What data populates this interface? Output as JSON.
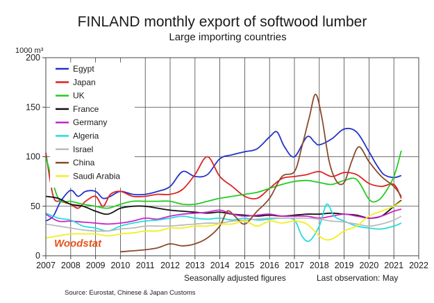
{
  "chart_data": {
    "type": "line",
    "title": "FINLAND  monthly export of softwood lumber",
    "subtitle": "Large importing countries",
    "ylabel": "1000 m³",
    "xlabel": "Seasonally adjusted figures",
    "note": "Last observation: May",
    "source": "Source: Eurostat, Chinese & Japan Customs",
    "watermark": "Woodstat",
    "xlim": [
      2007,
      2022
    ],
    "ylim": [
      0,
      200
    ],
    "x_ticks": [
      "2007",
      "2008",
      "2009",
      "2010",
      "2011",
      "2012",
      "2013",
      "2014",
      "2015",
      "2016",
      "2017",
      "2018",
      "2019",
      "2020",
      "2021",
      "2022"
    ],
    "y_ticks": [
      "0",
      "50",
      "100",
      "150",
      "200"
    ],
    "grid": "vertical-yearly-and-horizontal",
    "legend_position": "top-left",
    "series": [
      {
        "name": "Egypt",
        "color": "#2233cc",
        "x": [
          2007.0,
          2007.3,
          2007.6,
          2008.0,
          2008.3,
          2008.6,
          2009.0,
          2009.3,
          2009.6,
          2010.0,
          2010.5,
          2011.0,
          2011.5,
          2012.0,
          2012.5,
          2013.0,
          2013.5,
          2014.0,
          2014.5,
          2015.0,
          2015.5,
          2016.0,
          2016.3,
          2016.6,
          2017.0,
          2017.5,
          2017.8,
          2018.0,
          2018.5,
          2019.0,
          2019.5,
          2020.0,
          2020.3,
          2020.6,
          2021.0,
          2021.3
        ],
        "y": [
          35,
          40,
          55,
          66,
          60,
          65,
          65,
          58,
          60,
          65,
          62,
          62,
          65,
          70,
          85,
          80,
          82,
          98,
          102,
          105,
          108,
          120,
          125,
          110,
          100,
          120,
          115,
          112,
          118,
          128,
          125,
          105,
          92,
          82,
          79,
          81
        ]
      },
      {
        "name": "Japan",
        "color": "#dd2222",
        "x": [
          2007.0,
          2007.3,
          2007.6,
          2008.0,
          2008.3,
          2008.6,
          2009.0,
          2009.3,
          2009.6,
          2010.0,
          2010.5,
          2011.0,
          2011.5,
          2012.0,
          2012.5,
          2013.0,
          2013.5,
          2014.0,
          2014.5,
          2015.0,
          2015.5,
          2016.0,
          2016.5,
          2017.0,
          2017.5,
          2018.0,
          2018.5,
          2019.0,
          2019.5,
          2020.0,
          2020.5,
          2021.0,
          2021.3
        ],
        "y": [
          104,
          60,
          55,
          52,
          48,
          55,
          60,
          50,
          62,
          65,
          60,
          60,
          62,
          62,
          67,
          82,
          100,
          80,
          70,
          60,
          58,
          68,
          78,
          80,
          82,
          85,
          80,
          84,
          82,
          73,
          70,
          72,
          58
        ]
      },
      {
        "name": "UK",
        "color": "#22cc22",
        "x": [
          2007.0,
          2007.5,
          2008.0,
          2008.5,
          2009.0,
          2009.5,
          2010.0,
          2010.5,
          2011.0,
          2011.5,
          2012.0,
          2012.5,
          2013.0,
          2013.5,
          2014.0,
          2014.5,
          2015.0,
          2015.5,
          2016.0,
          2016.5,
          2017.0,
          2017.5,
          2018.0,
          2018.5,
          2019.0,
          2019.5,
          2020.0,
          2020.3,
          2020.6,
          2021.0,
          2021.3
        ],
        "y": [
          100,
          58,
          55,
          52,
          50,
          48,
          52,
          55,
          55,
          55,
          55,
          52,
          52,
          55,
          58,
          60,
          62,
          64,
          68,
          72,
          75,
          76,
          74,
          72,
          76,
          77,
          57,
          55,
          62,
          80,
          106
        ]
      },
      {
        "name": "France",
        "color": "#111111",
        "x": [
          2007.0,
          2007.5,
          2008.0,
          2008.5,
          2009.0,
          2009.5,
          2010.0,
          2010.5,
          2011.0,
          2011.5,
          2012.0,
          2012.5,
          2013.0,
          2013.5,
          2014.0,
          2014.5,
          2015.0,
          2015.5,
          2016.0,
          2016.5,
          2017.0,
          2017.5,
          2018.0,
          2018.5,
          2019.0,
          2019.5,
          2020.0,
          2020.5,
          2021.0,
          2021.3
        ],
        "y": [
          60,
          58,
          52,
          50,
          45,
          42,
          48,
          50,
          50,
          48,
          46,
          45,
          44,
          43,
          44,
          42,
          41,
          40,
          41,
          40,
          41,
          42,
          42,
          43,
          42,
          41,
          38,
          40,
          50,
          56
        ]
      },
      {
        "name": "Germany",
        "color": "#cc22cc",
        "x": [
          2007.0,
          2007.5,
          2008.0,
          2008.5,
          2009.0,
          2009.5,
          2010.0,
          2010.5,
          2011.0,
          2011.5,
          2012.0,
          2012.5,
          2013.0,
          2013.5,
          2014.0,
          2014.5,
          2015.0,
          2015.5,
          2016.0,
          2016.5,
          2017.0,
          2017.5,
          2018.0,
          2018.5,
          2019.0,
          2019.5,
          2020.0,
          2020.5,
          2021.0,
          2021.3
        ],
        "y": [
          42,
          35,
          35,
          34,
          33,
          32,
          33,
          35,
          38,
          37,
          40,
          42,
          43,
          44,
          46,
          42,
          40,
          41,
          42,
          40,
          40,
          40,
          38,
          40,
          42,
          40,
          38,
          40,
          45,
          47
        ]
      },
      {
        "name": "Algeria",
        "color": "#22dddd",
        "x": [
          2007.0,
          2007.5,
          2008.0,
          2008.5,
          2009.0,
          2009.5,
          2010.0,
          2010.5,
          2011.0,
          2011.5,
          2012.0,
          2012.5,
          2013.0,
          2013.5,
          2014.0,
          2014.5,
          2015.0,
          2015.5,
          2016.0,
          2016.5,
          2017.0,
          2017.3,
          2017.6,
          2018.0,
          2018.3,
          2018.6,
          2019.0,
          2019.5,
          2020.0,
          2020.5,
          2021.0,
          2021.3
        ],
        "y": [
          43,
          38,
          36,
          30,
          28,
          25,
          30,
          33,
          35,
          36,
          38,
          40,
          38,
          37,
          38,
          36,
          38,
          36,
          37,
          38,
          36,
          20,
          15,
          30,
          52,
          40,
          35,
          30,
          28,
          27,
          30,
          33
        ]
      },
      {
        "name": "Israel",
        "color": "#bbbbbb",
        "x": [
          2007.0,
          2007.5,
          2008.0,
          2008.5,
          2009.0,
          2009.5,
          2010.0,
          2010.5,
          2011.0,
          2011.5,
          2012.0,
          2012.5,
          2013.0,
          2013.5,
          2014.0,
          2014.5,
          2015.0,
          2015.5,
          2016.0,
          2016.5,
          2017.0,
          2017.5,
          2018.0,
          2018.5,
          2019.0,
          2019.5,
          2020.0,
          2020.5,
          2021.0,
          2021.3
        ],
        "y": [
          32,
          30,
          28,
          26,
          25,
          25,
          27,
          28,
          30,
          30,
          30,
          31,
          32,
          33,
          33,
          35,
          36,
          37,
          38,
          38,
          38,
          38,
          37,
          35,
          34,
          32,
          30,
          32,
          36,
          40
        ]
      },
      {
        "name": "China",
        "color": "#8b4a2b",
        "x": [
          2010.0,
          2010.5,
          2011.0,
          2011.5,
          2012.0,
          2012.5,
          2013.0,
          2013.5,
          2014.0,
          2014.3,
          2014.6,
          2015.0,
          2015.5,
          2016.0,
          2016.5,
          2017.0,
          2017.3,
          2017.6,
          2017.85,
          2018.1,
          2018.4,
          2018.7,
          2019.0,
          2019.3,
          2019.6,
          2020.0,
          2020.5,
          2021.0,
          2021.3
        ],
        "y": [
          4,
          5,
          6,
          8,
          12,
          10,
          12,
          18,
          30,
          45,
          40,
          32,
          45,
          58,
          80,
          85,
          110,
          140,
          163,
          140,
          95,
          75,
          74,
          95,
          110,
          95,
          80,
          70,
          60
        ]
      },
      {
        "name": "Saudi Arabia",
        "color": "#f0f020",
        "x": [
          2007.0,
          2007.5,
          2008.0,
          2008.5,
          2009.0,
          2009.5,
          2010.0,
          2010.5,
          2011.0,
          2011.5,
          2012.0,
          2012.5,
          2013.0,
          2013.5,
          2014.0,
          2014.5,
          2015.0,
          2015.5,
          2016.0,
          2016.5,
          2017.0,
          2017.5,
          2018.0,
          2018.3,
          2018.6,
          2019.0,
          2019.5,
          2020.0,
          2020.5,
          2021.0,
          2021.3
        ],
        "y": [
          18,
          20,
          22,
          22,
          22,
          20,
          22,
          23,
          25,
          25,
          28,
          28,
          30,
          30,
          32,
          32,
          35,
          30,
          35,
          33,
          35,
          32,
          20,
          16,
          18,
          25,
          30,
          40,
          45,
          50,
          55
        ]
      }
    ]
  }
}
